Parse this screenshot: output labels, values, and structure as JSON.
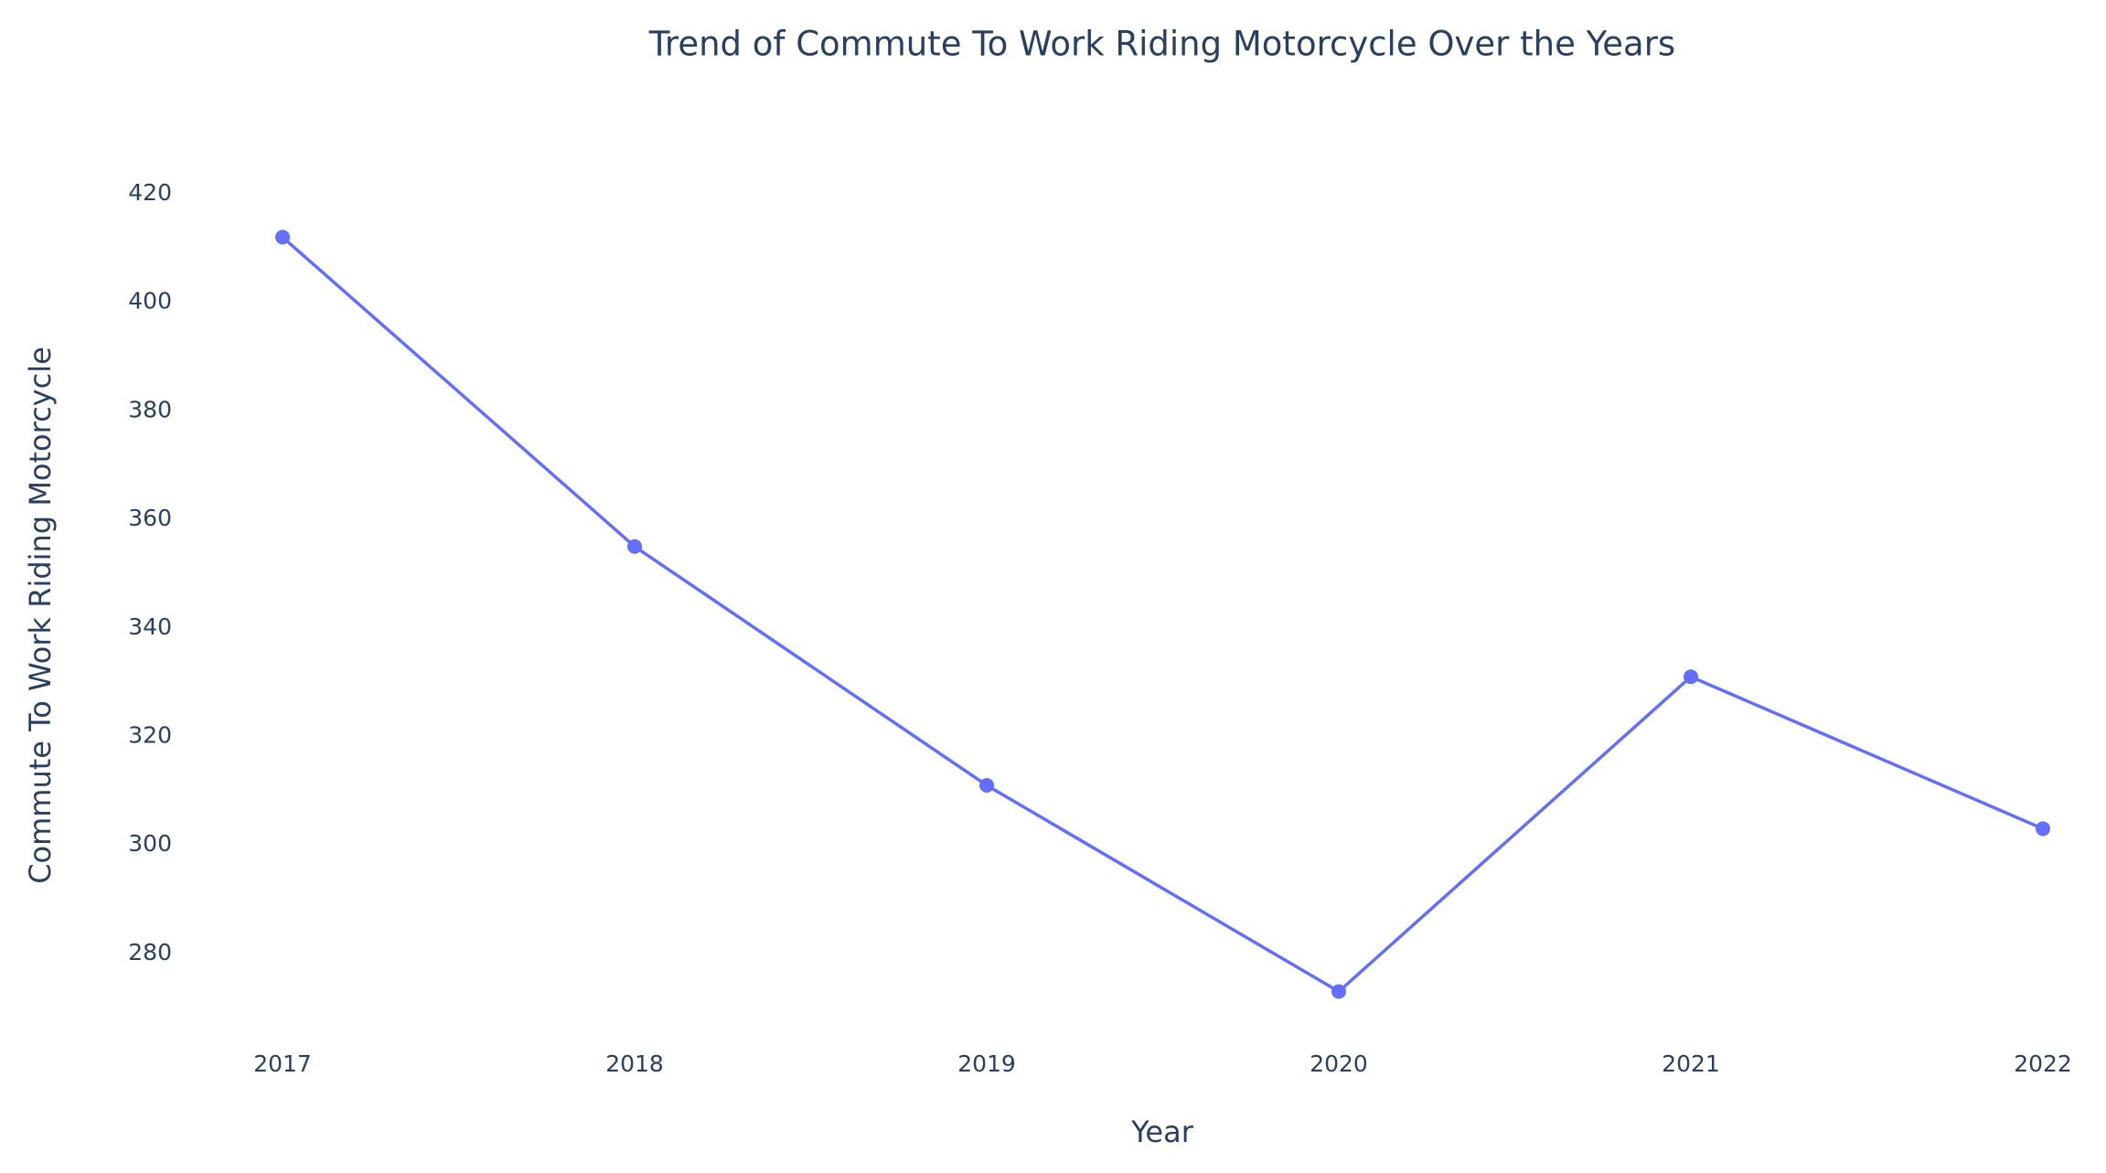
{
  "chart_data": {
    "type": "line",
    "title": "Trend of Commute To Work Riding Motorcycle  Over the Years",
    "x_label": "Year",
    "y_label": "Commute To Work Riding Motorcycle",
    "x": [
      2017,
      2018,
      2019,
      2020,
      2021,
      2022
    ],
    "values": [
      412,
      355,
      311,
      273,
      331,
      303
    ],
    "color": "#636efa",
    "xlim": [
      2017,
      2022
    ],
    "xticks": [
      2017,
      2018,
      2019,
      2020,
      2021,
      2022
    ],
    "ylim": [
      265,
      421
    ],
    "yticks": [
      280,
      300,
      320,
      340,
      360,
      380,
      400,
      420
    ],
    "grid": false,
    "markers": true
  }
}
